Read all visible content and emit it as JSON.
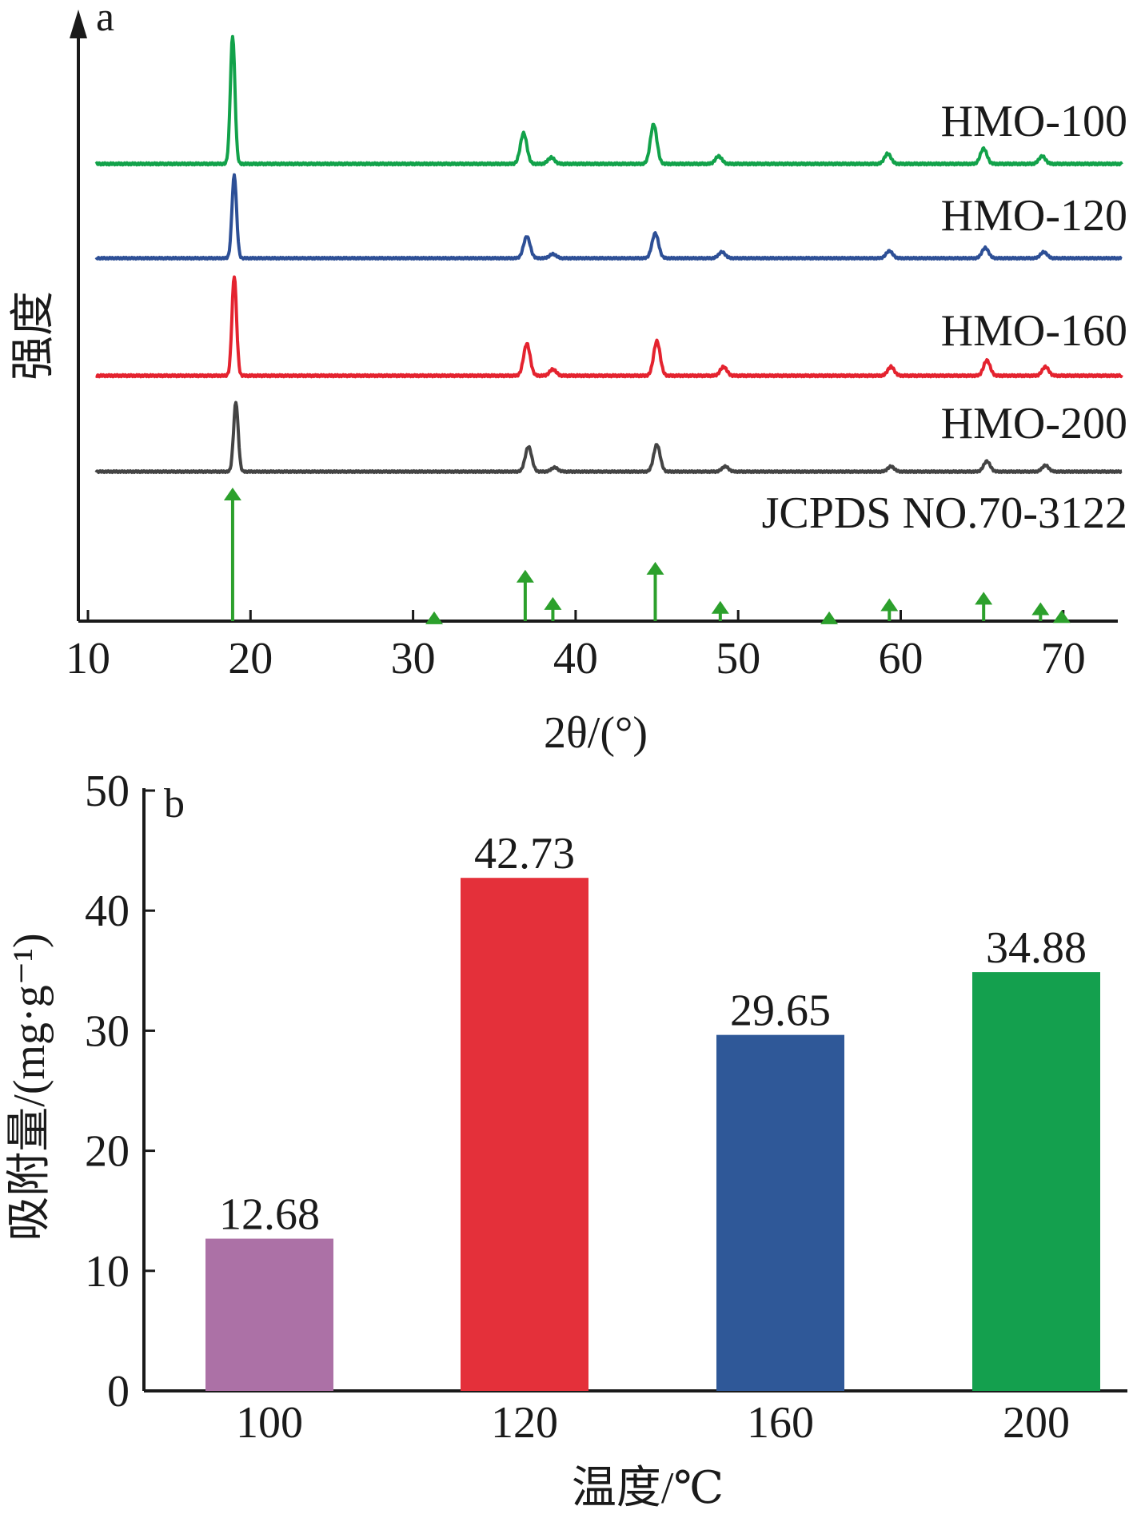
{
  "chart_data": [
    {
      "type": "line",
      "panel": "a",
      "title": "",
      "xlabel": "2θ/(°)",
      "ylabel": "强度",
      "xlim": [
        10,
        74
      ],
      "x_ticks": [
        10,
        20,
        30,
        40,
        50,
        60,
        70
      ],
      "y_ticks": [],
      "grid": false,
      "series": [
        {
          "name": "HMO-100",
          "color": "#12a24a",
          "peaks": [
            [
              18.9,
              1.0
            ],
            [
              36.8,
              0.24
            ],
            [
              38.5,
              0.05
            ],
            [
              44.8,
              0.31
            ],
            [
              48.8,
              0.06
            ],
            [
              59.2,
              0.08
            ],
            [
              65.1,
              0.12
            ],
            [
              68.7,
              0.06
            ]
          ]
        },
        {
          "name": "HMO-120",
          "color": "#2d4f96",
          "peaks": [
            [
              19.0,
              0.8
            ],
            [
              37.0,
              0.21
            ],
            [
              38.6,
              0.04
            ],
            [
              44.9,
              0.24
            ],
            [
              49.0,
              0.06
            ],
            [
              59.3,
              0.07
            ],
            [
              65.2,
              0.1
            ],
            [
              68.8,
              0.06
            ]
          ]
        },
        {
          "name": "HMO-160",
          "color": "#e4232f",
          "peaks": [
            [
              19.0,
              0.78
            ],
            [
              37.0,
              0.25
            ],
            [
              38.6,
              0.05
            ],
            [
              45.0,
              0.27
            ],
            [
              49.1,
              0.07
            ],
            [
              59.4,
              0.07
            ],
            [
              65.3,
              0.12
            ],
            [
              68.9,
              0.07
            ]
          ]
        },
        {
          "name": "HMO-200",
          "color": "#444444",
          "peaks": [
            [
              19.1,
              0.67
            ],
            [
              37.1,
              0.24
            ],
            [
              38.7,
              0.04
            ],
            [
              45.0,
              0.26
            ],
            [
              49.2,
              0.05
            ],
            [
              59.4,
              0.05
            ],
            [
              65.3,
              0.1
            ],
            [
              68.9,
              0.06
            ]
          ]
        }
      ],
      "reference": {
        "name": "JCPDS NO.70-3122",
        "color": "#2ca02c",
        "lines": [
          [
            18.9,
            100
          ],
          [
            31.3,
            5
          ],
          [
            36.9,
            37
          ],
          [
            38.6,
            16
          ],
          [
            44.9,
            43
          ],
          [
            48.9,
            13
          ],
          [
            55.6,
            5
          ],
          [
            59.3,
            15
          ],
          [
            65.1,
            20
          ],
          [
            68.6,
            12
          ],
          [
            69.9,
            6
          ]
        ]
      }
    },
    {
      "type": "bar",
      "panel": "b",
      "title": "",
      "xlabel": "温度/℃",
      "ylabel": "吸附量/(mg·g⁻¹)",
      "ylim": [
        0,
        50
      ],
      "y_ticks": [
        0,
        10,
        20,
        30,
        40,
        50
      ],
      "categories": [
        "100",
        "120",
        "160",
        "200"
      ],
      "values": [
        12.68,
        42.73,
        29.65,
        34.88
      ],
      "value_labels": [
        "12.68",
        "42.73",
        "29.65",
        "34.88"
      ],
      "colors": [
        "#ac71a6",
        "#e4303a",
        "#2f5898",
        "#14a04e"
      ],
      "grid": false
    }
  ]
}
